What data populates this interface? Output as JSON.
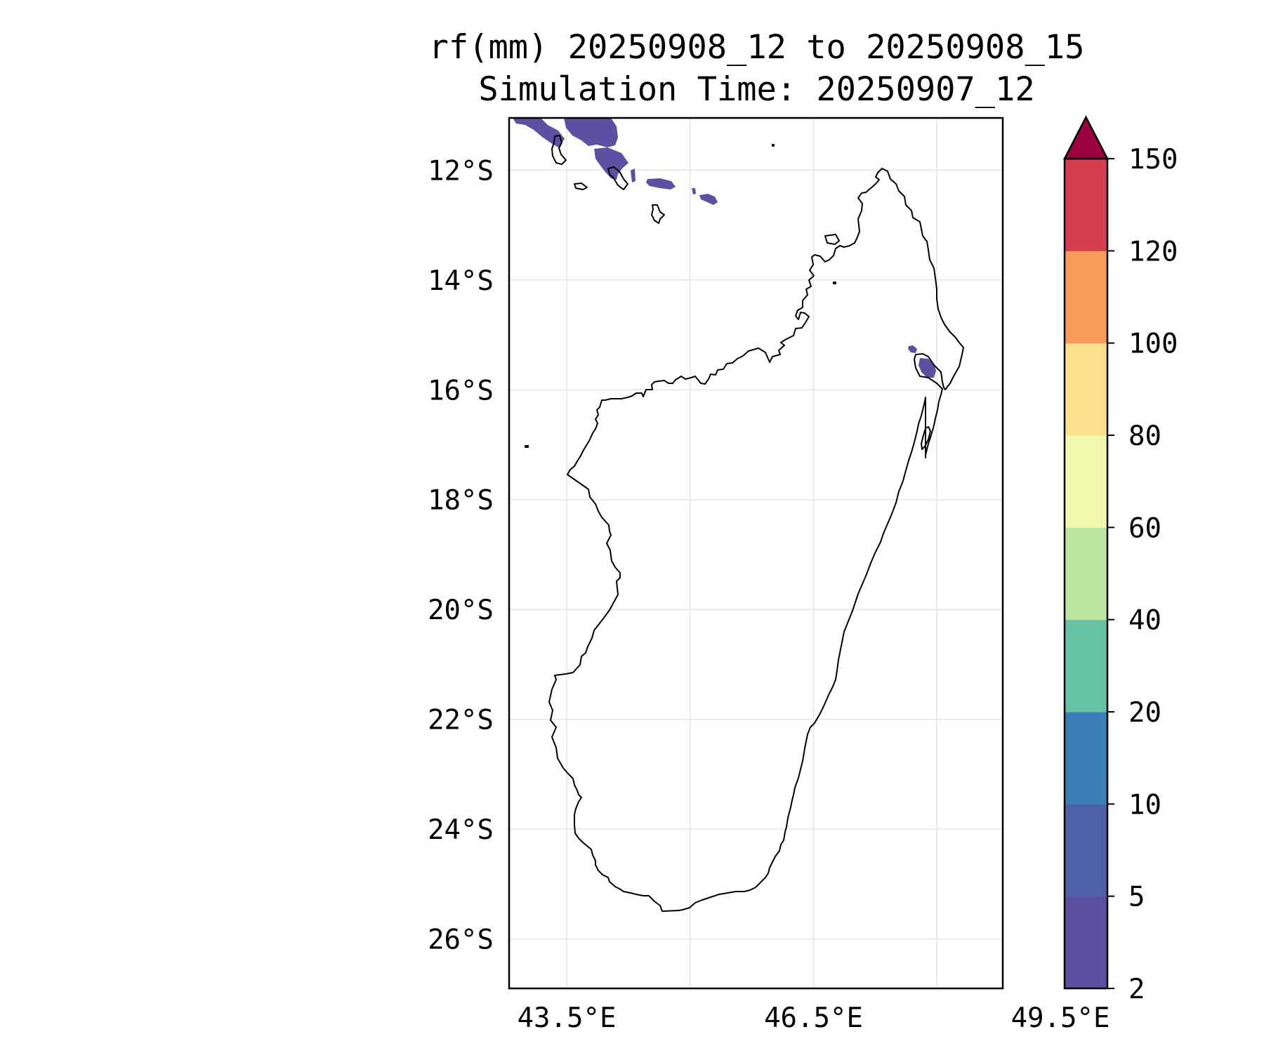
{
  "title": {
    "line1": "rf(mm) 20250908_12 to 20250908_15",
    "line2": "Simulation Time: 20250907_12"
  },
  "map": {
    "region": "Madagascar",
    "lon_range": [
      42.8,
      48.8
    ],
    "lat_range": [
      -26.9,
      -11.05
    ],
    "lon_ticks": [
      {
        "v": 43.5,
        "label": "43.5°E"
      },
      {
        "v": 46.5,
        "label": "46.5°E"
      },
      {
        "v": 49.5,
        "label": "49.5°E"
      }
    ],
    "lat_ticks": [
      {
        "v": -12,
        "label": "12°S"
      },
      {
        "v": -14,
        "label": "14°S"
      },
      {
        "v": -16,
        "label": "16°S"
      },
      {
        "v": -18,
        "label": "18°S"
      },
      {
        "v": -20,
        "label": "20°S"
      },
      {
        "v": -22,
        "label": "22°S"
      },
      {
        "v": -24,
        "label": "24°S"
      },
      {
        "v": -26,
        "label": "26°S"
      }
    ],
    "grid": true,
    "coastline_color": "#000000",
    "rain_color": "#5e4fa2"
  },
  "colorbar": {
    "levels": [
      "2",
      "5",
      "10",
      "20",
      "40",
      "60",
      "80",
      "100",
      "120",
      "150"
    ],
    "colors": [
      "#5e4fa2",
      "#4f61aa",
      "#3a7fb8",
      "#66c2a5",
      "#bde4a0",
      "#f2f9ae",
      "#fde08b",
      "#f99b5a",
      "#d53e4f"
    ],
    "extend_color": "#9e0142",
    "extend": "max"
  }
}
